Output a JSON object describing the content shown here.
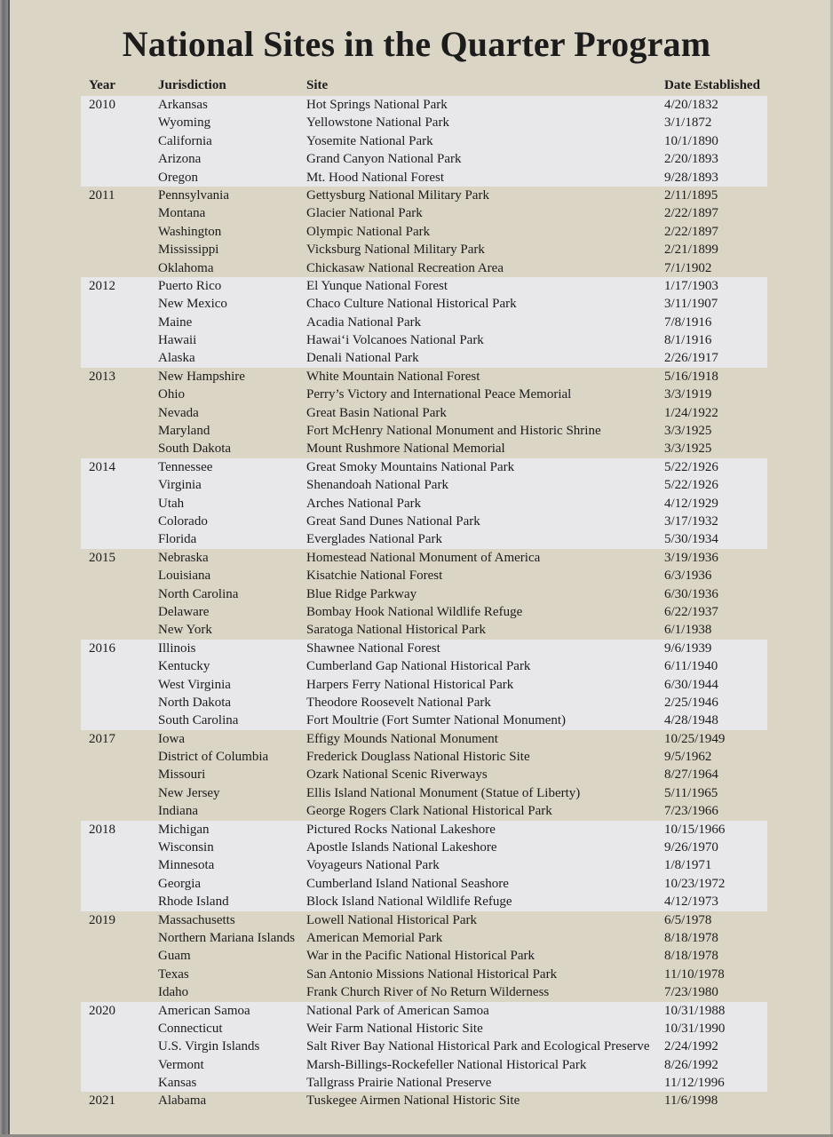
{
  "title": "National Sites in the Quarter Program",
  "headers": {
    "year": "Year",
    "jurisdiction": "Jurisdiction",
    "site": "Site",
    "date": "Date Established"
  },
  "colors": {
    "background": "#dbd5c6",
    "band": "#e8e8eb"
  },
  "groups": [
    {
      "year": "2010",
      "rows": [
        {
          "jurisdiction": "Arkansas",
          "site": "Hot Springs National Park",
          "date": "4/20/1832"
        },
        {
          "jurisdiction": "Wyoming",
          "site": "Yellowstone National Park",
          "date": "3/1/1872"
        },
        {
          "jurisdiction": "California",
          "site": "Yosemite National Park",
          "date": "10/1/1890"
        },
        {
          "jurisdiction": "Arizona",
          "site": "Grand Canyon National Park",
          "date": "2/20/1893"
        },
        {
          "jurisdiction": "Oregon",
          "site": "Mt. Hood National Forest",
          "date": "9/28/1893"
        }
      ]
    },
    {
      "year": "2011",
      "rows": [
        {
          "jurisdiction": "Pennsylvania",
          "site": "Gettysburg National Military Park",
          "date": "2/11/1895"
        },
        {
          "jurisdiction": "Montana",
          "site": "Glacier National Park",
          "date": "2/22/1897"
        },
        {
          "jurisdiction": "Washington",
          "site": "Olympic National Park",
          "date": "2/22/1897"
        },
        {
          "jurisdiction": "Mississippi",
          "site": "Vicksburg National Military Park",
          "date": "2/21/1899"
        },
        {
          "jurisdiction": "Oklahoma",
          "site": "Chickasaw National Recreation Area",
          "date": "7/1/1902"
        }
      ]
    },
    {
      "year": "2012",
      "rows": [
        {
          "jurisdiction": "Puerto Rico",
          "site": "El Yunque National Forest",
          "date": "1/17/1903"
        },
        {
          "jurisdiction": "New Mexico",
          "site": "Chaco Culture National Historical Park",
          "date": "3/11/1907"
        },
        {
          "jurisdiction": "Maine",
          "site": "Acadia National Park",
          "date": "7/8/1916"
        },
        {
          "jurisdiction": "Hawaii",
          "site": "Hawai‘i Volcanoes National Park",
          "date": "8/1/1916"
        },
        {
          "jurisdiction": "Alaska",
          "site": "Denali National Park",
          "date": "2/26/1917"
        }
      ]
    },
    {
      "year": "2013",
      "rows": [
        {
          "jurisdiction": "New Hampshire",
          "site": "White Mountain National Forest",
          "date": "5/16/1918"
        },
        {
          "jurisdiction": "Ohio",
          "site": "Perry’s Victory and International Peace Memorial",
          "date": "3/3/1919"
        },
        {
          "jurisdiction": "Nevada",
          "site": "Great Basin National Park",
          "date": "1/24/1922"
        },
        {
          "jurisdiction": "Maryland",
          "site": "Fort McHenry National Monument and Historic Shrine",
          "date": "3/3/1925"
        },
        {
          "jurisdiction": "South Dakota",
          "site": "Mount Rushmore National Memorial",
          "date": "3/3/1925"
        }
      ]
    },
    {
      "year": "2014",
      "rows": [
        {
          "jurisdiction": "Tennessee",
          "site": "Great Smoky Mountains National Park",
          "date": "5/22/1926"
        },
        {
          "jurisdiction": "Virginia",
          "site": "Shenandoah National Park",
          "date": "5/22/1926"
        },
        {
          "jurisdiction": "Utah",
          "site": "Arches National Park",
          "date": "4/12/1929"
        },
        {
          "jurisdiction": "Colorado",
          "site": "Great Sand Dunes National Park",
          "date": "3/17/1932"
        },
        {
          "jurisdiction": "Florida",
          "site": "Everglades National Park",
          "date": "5/30/1934"
        }
      ]
    },
    {
      "year": "2015",
      "rows": [
        {
          "jurisdiction": "Nebraska",
          "site": "Homestead National Monument of America",
          "date": "3/19/1936"
        },
        {
          "jurisdiction": "Louisiana",
          "site": "Kisatchie National Forest",
          "date": "6/3/1936"
        },
        {
          "jurisdiction": "North Carolina",
          "site": "Blue Ridge Parkway",
          "date": "6/30/1936"
        },
        {
          "jurisdiction": "Delaware",
          "site": "Bombay Hook National Wildlife Refuge",
          "date": "6/22/1937"
        },
        {
          "jurisdiction": "New York",
          "site": "Saratoga National Historical Park",
          "date": "6/1/1938"
        }
      ]
    },
    {
      "year": "2016",
      "rows": [
        {
          "jurisdiction": "Illinois",
          "site": "Shawnee National Forest",
          "date": "9/6/1939"
        },
        {
          "jurisdiction": "Kentucky",
          "site": "Cumberland Gap National Historical Park",
          "date": "6/11/1940"
        },
        {
          "jurisdiction": "West Virginia",
          "site": "Harpers Ferry National Historical Park",
          "date": "6/30/1944"
        },
        {
          "jurisdiction": "North Dakota",
          "site": "Theodore Roosevelt National Park",
          "date": "2/25/1946"
        },
        {
          "jurisdiction": "South Carolina",
          "site": "Fort Moultrie (Fort Sumter National Monument)",
          "date": "4/28/1948"
        }
      ]
    },
    {
      "year": "2017",
      "rows": [
        {
          "jurisdiction": "Iowa",
          "site": "Effigy Mounds National Monument",
          "date": "10/25/1949"
        },
        {
          "jurisdiction": "District of Columbia",
          "site": "Frederick Douglass National Historic Site",
          "date": "9/5/1962"
        },
        {
          "jurisdiction": "Missouri",
          "site": "Ozark National Scenic Riverways",
          "date": "8/27/1964"
        },
        {
          "jurisdiction": "New Jersey",
          "site": "Ellis Island National Monument (Statue of Liberty)",
          "date": "5/11/1965"
        },
        {
          "jurisdiction": "Indiana",
          "site": "George Rogers Clark National Historical Park",
          "date": "7/23/1966"
        }
      ]
    },
    {
      "year": "2018",
      "rows": [
        {
          "jurisdiction": "Michigan",
          "site": "Pictured Rocks National Lakeshore",
          "date": "10/15/1966"
        },
        {
          "jurisdiction": "Wisconsin",
          "site": "Apostle Islands National Lakeshore",
          "date": "9/26/1970"
        },
        {
          "jurisdiction": "Minnesota",
          "site": "Voyageurs National Park",
          "date": "1/8/1971"
        },
        {
          "jurisdiction": "Georgia",
          "site": "Cumberland Island National Seashore",
          "date": "10/23/1972"
        },
        {
          "jurisdiction": "Rhode Island",
          "site": "Block Island National Wildlife Refuge",
          "date": "4/12/1973"
        }
      ]
    },
    {
      "year": "2019",
      "rows": [
        {
          "jurisdiction": "Massachusetts",
          "site": "Lowell National Historical Park",
          "date": "6/5/1978"
        },
        {
          "jurisdiction": "Northern Mariana Islands",
          "site": "American Memorial Park",
          "date": "8/18/1978"
        },
        {
          "jurisdiction": "Guam",
          "site": "War in the Pacific National Historical Park",
          "date": "8/18/1978"
        },
        {
          "jurisdiction": "Texas",
          "site": "San Antonio Missions National Historical Park",
          "date": "11/10/1978"
        },
        {
          "jurisdiction": "Idaho",
          "site": "Frank Church River of No Return Wilderness",
          "date": "7/23/1980"
        }
      ]
    },
    {
      "year": "2020",
      "rows": [
        {
          "jurisdiction": "American Samoa",
          "site": "National Park of American Samoa",
          "date": "10/31/1988"
        },
        {
          "jurisdiction": "Connecticut",
          "site": "Weir Farm National Historic Site",
          "date": "10/31/1990"
        },
        {
          "jurisdiction": "U.S. Virgin Islands",
          "site": "Salt River Bay National Historical Park and Ecological Preserve",
          "date": "2/24/1992"
        },
        {
          "jurisdiction": "Vermont",
          "site": "Marsh-Billings-Rockefeller National Historical Park",
          "date": "8/26/1992"
        },
        {
          "jurisdiction": "Kansas",
          "site": "Tallgrass Prairie National Preserve",
          "date": "11/12/1996"
        }
      ]
    },
    {
      "year": "2021",
      "rows": [
        {
          "jurisdiction": "Alabama",
          "site": "Tuskegee Airmen National Historic Site",
          "date": "11/6/1998"
        }
      ]
    }
  ]
}
